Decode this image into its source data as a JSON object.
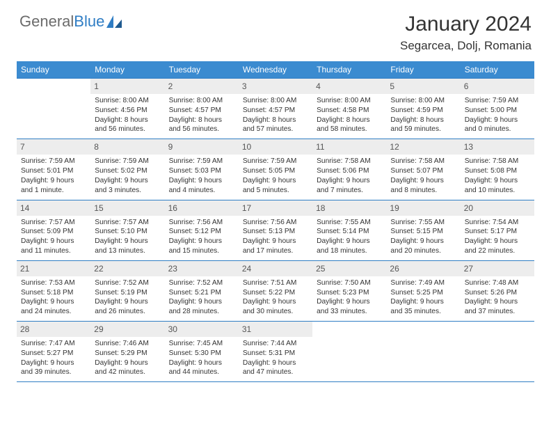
{
  "logo": {
    "text1": "General",
    "text2": "Blue"
  },
  "title": "January 2024",
  "location": "Segarcea, Dolj, Romania",
  "colors": {
    "header_bg": "#3b8bd0",
    "header_text": "#ffffff",
    "border": "#2f7dc4",
    "daynum_bg": "#ededed",
    "text": "#333333",
    "logo_gray": "#6b6b6b",
    "logo_blue": "#2f7dc4",
    "page_bg": "#ffffff"
  },
  "weekdays": [
    "Sunday",
    "Monday",
    "Tuesday",
    "Wednesday",
    "Thursday",
    "Friday",
    "Saturday"
  ],
  "weeks": [
    [
      {
        "day": "",
        "sunrise": "",
        "sunset": "",
        "daylight1": "",
        "daylight2": ""
      },
      {
        "day": "1",
        "sunrise": "Sunrise: 8:00 AM",
        "sunset": "Sunset: 4:56 PM",
        "daylight1": "Daylight: 8 hours",
        "daylight2": "and 56 minutes."
      },
      {
        "day": "2",
        "sunrise": "Sunrise: 8:00 AM",
        "sunset": "Sunset: 4:57 PM",
        "daylight1": "Daylight: 8 hours",
        "daylight2": "and 56 minutes."
      },
      {
        "day": "3",
        "sunrise": "Sunrise: 8:00 AM",
        "sunset": "Sunset: 4:57 PM",
        "daylight1": "Daylight: 8 hours",
        "daylight2": "and 57 minutes."
      },
      {
        "day": "4",
        "sunrise": "Sunrise: 8:00 AM",
        "sunset": "Sunset: 4:58 PM",
        "daylight1": "Daylight: 8 hours",
        "daylight2": "and 58 minutes."
      },
      {
        "day": "5",
        "sunrise": "Sunrise: 8:00 AM",
        "sunset": "Sunset: 4:59 PM",
        "daylight1": "Daylight: 8 hours",
        "daylight2": "and 59 minutes."
      },
      {
        "day": "6",
        "sunrise": "Sunrise: 7:59 AM",
        "sunset": "Sunset: 5:00 PM",
        "daylight1": "Daylight: 9 hours",
        "daylight2": "and 0 minutes."
      }
    ],
    [
      {
        "day": "7",
        "sunrise": "Sunrise: 7:59 AM",
        "sunset": "Sunset: 5:01 PM",
        "daylight1": "Daylight: 9 hours",
        "daylight2": "and 1 minute."
      },
      {
        "day": "8",
        "sunrise": "Sunrise: 7:59 AM",
        "sunset": "Sunset: 5:02 PM",
        "daylight1": "Daylight: 9 hours",
        "daylight2": "and 3 minutes."
      },
      {
        "day": "9",
        "sunrise": "Sunrise: 7:59 AM",
        "sunset": "Sunset: 5:03 PM",
        "daylight1": "Daylight: 9 hours",
        "daylight2": "and 4 minutes."
      },
      {
        "day": "10",
        "sunrise": "Sunrise: 7:59 AM",
        "sunset": "Sunset: 5:05 PM",
        "daylight1": "Daylight: 9 hours",
        "daylight2": "and 5 minutes."
      },
      {
        "day": "11",
        "sunrise": "Sunrise: 7:58 AM",
        "sunset": "Sunset: 5:06 PM",
        "daylight1": "Daylight: 9 hours",
        "daylight2": "and 7 minutes."
      },
      {
        "day": "12",
        "sunrise": "Sunrise: 7:58 AM",
        "sunset": "Sunset: 5:07 PM",
        "daylight1": "Daylight: 9 hours",
        "daylight2": "and 8 minutes."
      },
      {
        "day": "13",
        "sunrise": "Sunrise: 7:58 AM",
        "sunset": "Sunset: 5:08 PM",
        "daylight1": "Daylight: 9 hours",
        "daylight2": "and 10 minutes."
      }
    ],
    [
      {
        "day": "14",
        "sunrise": "Sunrise: 7:57 AM",
        "sunset": "Sunset: 5:09 PM",
        "daylight1": "Daylight: 9 hours",
        "daylight2": "and 11 minutes."
      },
      {
        "day": "15",
        "sunrise": "Sunrise: 7:57 AM",
        "sunset": "Sunset: 5:10 PM",
        "daylight1": "Daylight: 9 hours",
        "daylight2": "and 13 minutes."
      },
      {
        "day": "16",
        "sunrise": "Sunrise: 7:56 AM",
        "sunset": "Sunset: 5:12 PM",
        "daylight1": "Daylight: 9 hours",
        "daylight2": "and 15 minutes."
      },
      {
        "day": "17",
        "sunrise": "Sunrise: 7:56 AM",
        "sunset": "Sunset: 5:13 PM",
        "daylight1": "Daylight: 9 hours",
        "daylight2": "and 17 minutes."
      },
      {
        "day": "18",
        "sunrise": "Sunrise: 7:55 AM",
        "sunset": "Sunset: 5:14 PM",
        "daylight1": "Daylight: 9 hours",
        "daylight2": "and 18 minutes."
      },
      {
        "day": "19",
        "sunrise": "Sunrise: 7:55 AM",
        "sunset": "Sunset: 5:15 PM",
        "daylight1": "Daylight: 9 hours",
        "daylight2": "and 20 minutes."
      },
      {
        "day": "20",
        "sunrise": "Sunrise: 7:54 AM",
        "sunset": "Sunset: 5:17 PM",
        "daylight1": "Daylight: 9 hours",
        "daylight2": "and 22 minutes."
      }
    ],
    [
      {
        "day": "21",
        "sunrise": "Sunrise: 7:53 AM",
        "sunset": "Sunset: 5:18 PM",
        "daylight1": "Daylight: 9 hours",
        "daylight2": "and 24 minutes."
      },
      {
        "day": "22",
        "sunrise": "Sunrise: 7:52 AM",
        "sunset": "Sunset: 5:19 PM",
        "daylight1": "Daylight: 9 hours",
        "daylight2": "and 26 minutes."
      },
      {
        "day": "23",
        "sunrise": "Sunrise: 7:52 AM",
        "sunset": "Sunset: 5:21 PM",
        "daylight1": "Daylight: 9 hours",
        "daylight2": "and 28 minutes."
      },
      {
        "day": "24",
        "sunrise": "Sunrise: 7:51 AM",
        "sunset": "Sunset: 5:22 PM",
        "daylight1": "Daylight: 9 hours",
        "daylight2": "and 30 minutes."
      },
      {
        "day": "25",
        "sunrise": "Sunrise: 7:50 AM",
        "sunset": "Sunset: 5:23 PM",
        "daylight1": "Daylight: 9 hours",
        "daylight2": "and 33 minutes."
      },
      {
        "day": "26",
        "sunrise": "Sunrise: 7:49 AM",
        "sunset": "Sunset: 5:25 PM",
        "daylight1": "Daylight: 9 hours",
        "daylight2": "and 35 minutes."
      },
      {
        "day": "27",
        "sunrise": "Sunrise: 7:48 AM",
        "sunset": "Sunset: 5:26 PM",
        "daylight1": "Daylight: 9 hours",
        "daylight2": "and 37 minutes."
      }
    ],
    [
      {
        "day": "28",
        "sunrise": "Sunrise: 7:47 AM",
        "sunset": "Sunset: 5:27 PM",
        "daylight1": "Daylight: 9 hours",
        "daylight2": "and 39 minutes."
      },
      {
        "day": "29",
        "sunrise": "Sunrise: 7:46 AM",
        "sunset": "Sunset: 5:29 PM",
        "daylight1": "Daylight: 9 hours",
        "daylight2": "and 42 minutes."
      },
      {
        "day": "30",
        "sunrise": "Sunrise: 7:45 AM",
        "sunset": "Sunset: 5:30 PM",
        "daylight1": "Daylight: 9 hours",
        "daylight2": "and 44 minutes."
      },
      {
        "day": "31",
        "sunrise": "Sunrise: 7:44 AM",
        "sunset": "Sunset: 5:31 PM",
        "daylight1": "Daylight: 9 hours",
        "daylight2": "and 47 minutes."
      },
      {
        "day": "",
        "sunrise": "",
        "sunset": "",
        "daylight1": "",
        "daylight2": ""
      },
      {
        "day": "",
        "sunrise": "",
        "sunset": "",
        "daylight1": "",
        "daylight2": ""
      },
      {
        "day": "",
        "sunrise": "",
        "sunset": "",
        "daylight1": "",
        "daylight2": ""
      }
    ]
  ]
}
